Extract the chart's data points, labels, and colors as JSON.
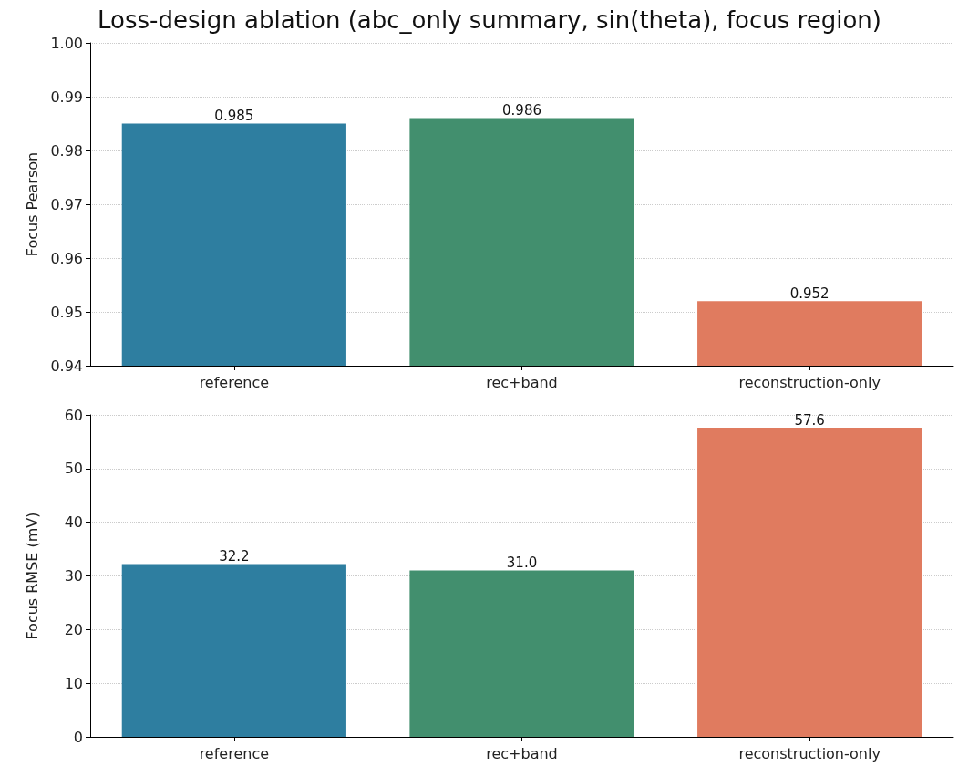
{
  "chart_data": [
    {
      "type": "bar",
      "title": "Loss-design ablation (abc_only summary, sin(theta), focus region)",
      "ylabel": "Focus Pearson",
      "categories": [
        "reference",
        "rec+band",
        "reconstruction-only"
      ],
      "values": [
        0.985,
        0.986,
        0.952
      ],
      "colors": [
        "#2e7ea0",
        "#428f6e",
        "#e07b5f"
      ],
      "ylim": [
        0.94,
        1.0
      ],
      "yticks": [
        {
          "value": 0.94,
          "label": "0.94"
        },
        {
          "value": 0.95,
          "label": "0.95"
        },
        {
          "value": 0.96,
          "label": "0.96"
        },
        {
          "value": 0.97,
          "label": "0.97"
        },
        {
          "value": 0.98,
          "label": "0.98"
        },
        {
          "value": 0.99,
          "label": "0.99"
        },
        {
          "value": 1.0,
          "label": "1.00"
        }
      ],
      "grid": "y",
      "data_labels": true
    },
    {
      "type": "bar",
      "ylabel": "Focus RMSE (mV)",
      "categories": [
        "reference",
        "rec+band",
        "reconstruction-only"
      ],
      "values": [
        32.2,
        31.0,
        57.6
      ],
      "colors": [
        "#2e7ea0",
        "#428f6e",
        "#e07b5f"
      ],
      "ylim": [
        0,
        60
      ],
      "yticks": [
        0,
        10,
        20,
        30,
        40,
        50,
        60
      ],
      "grid": "y",
      "value_labels": [
        "32.2",
        "31.0",
        "57.6"
      ]
    }
  ]
}
